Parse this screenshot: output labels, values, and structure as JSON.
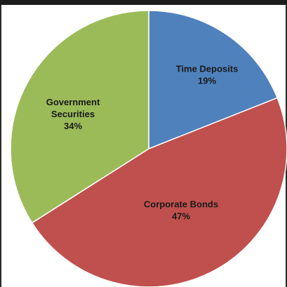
{
  "chart_data": {
    "type": "pie",
    "title": "",
    "slices": [
      {
        "name": "Time Deposits",
        "label_lines": [
          "Time Deposits"
        ],
        "percent_label": "19%",
        "value": 19,
        "color": "#4f81bd"
      },
      {
        "name": "Corporate Bonds",
        "label_lines": [
          "Corporate Bonds"
        ],
        "percent_label": "47%",
        "value": 47,
        "color": "#c0504d"
      },
      {
        "name": "Government Securities",
        "label_lines": [
          "Government",
          "Securities"
        ],
        "percent_label": "34%",
        "value": 34,
        "color": "#9bbb59"
      }
    ],
    "start_angle_deg": 0,
    "direction": "clockwise",
    "legend": "none"
  }
}
